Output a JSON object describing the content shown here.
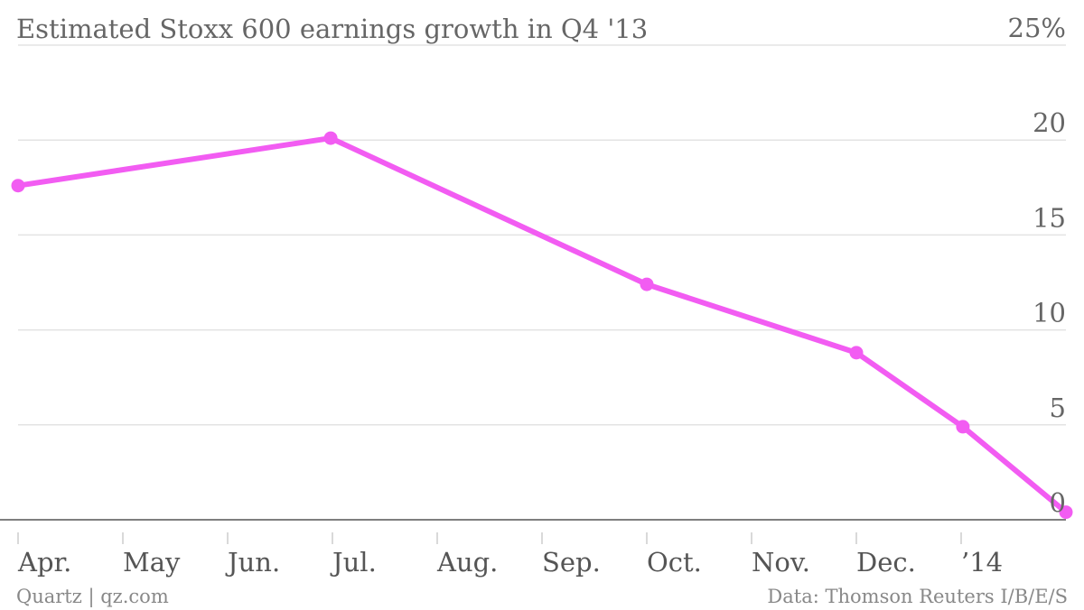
{
  "chart_data": {
    "type": "line",
    "title": "Estimated Stoxx 600 earnings growth in Q4 '13",
    "y_unit_suffix": "%",
    "ylim": [
      0,
      25
    ],
    "y_ticks": [
      0,
      5,
      10,
      15,
      20,
      25
    ],
    "x_ticks": [
      "Apr.",
      "May",
      "Jun.",
      "Jul.",
      "Aug.",
      "Sep.",
      "Oct.",
      "Nov.",
      "Dec.",
      "’14"
    ],
    "x_range": [
      "2013-04-01",
      "2014-01-31"
    ],
    "grid": true,
    "legend": "none",
    "line_color": "#f25cf2",
    "series": [
      {
        "x": [
          "2013-04-01",
          "2013-07-01",
          "2013-10-01",
          "2013-12-01",
          "2014-01-01",
          "2014-01-31"
        ],
        "y": [
          17.6,
          20.1,
          12.4,
          8.8,
          4.9,
          0.4
        ]
      }
    ],
    "source": "Data: Thomson Reuters I/B/E/S",
    "credit": "Quartz | qz.com"
  }
}
